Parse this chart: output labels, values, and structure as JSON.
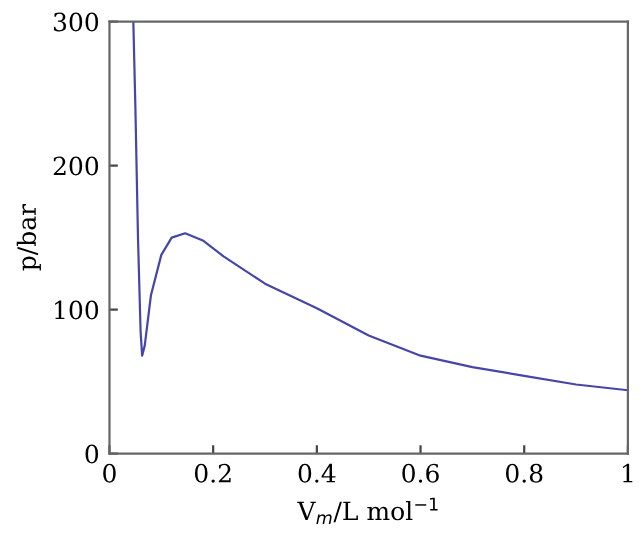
{
  "chart_data": {
    "type": "line",
    "xlabel": "V$_{m}$/L mol$^{−1}$",
    "ylabel": "p/bar",
    "x": [
      0.046,
      0.05,
      0.055,
      0.06,
      0.063,
      0.068,
      0.08,
      0.1,
      0.12,
      0.146,
      0.18,
      0.22,
      0.3,
      0.4,
      0.5,
      0.6,
      0.7,
      0.8,
      0.9,
      1.0
    ],
    "series": [
      {
        "color": "#4646a8",
        "values": [
          300,
          240,
          150,
          85,
          68,
          75,
          110,
          138,
          150,
          153,
          148,
          137,
          118,
          101,
          82,
          68,
          60,
          54,
          48,
          44
        ]
      }
    ],
    "xlim": [
      0,
      1
    ],
    "ylim": [
      0,
      300
    ],
    "xticks": [
      0,
      0.2,
      0.4,
      0.6,
      0.8,
      1
    ],
    "yticks": [
      0,
      100,
      200,
      300
    ],
    "grid": false,
    "marker": "none",
    "line_style": "solid"
  }
}
